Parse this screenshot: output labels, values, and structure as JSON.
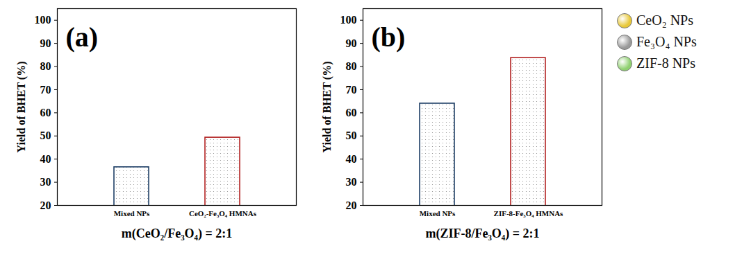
{
  "chart_data": [
    {
      "type": "bar",
      "label": "(a)",
      "categories": [
        "Mixed NPs",
        "CeO₂-Fe₃O₄ HMNAs"
      ],
      "values": [
        36.5,
        49.3
      ],
      "colors": [
        "#1f3f66",
        "#b22222"
      ],
      "xlabel": "m(CeO₂/Fe₃O₄) = 2:1",
      "ylabel": "Yield of BHET (%)",
      "ylim": [
        20,
        105
      ],
      "yticks": [
        20,
        30,
        40,
        50,
        60,
        70,
        80,
        90,
        100
      ]
    },
    {
      "type": "bar",
      "label": "(b)",
      "categories": [
        "Mixed NPs",
        "ZIF-8-Fe₃O₄ HMNAs"
      ],
      "values": [
        64.0,
        83.7
      ],
      "colors": [
        "#1f3f66",
        "#b22222"
      ],
      "xlabel": "m(ZIF-8/Fe₃O₄) = 2:1",
      "ylabel": "Yield of BHET (%)",
      "ylim": [
        20,
        105
      ],
      "yticks": [
        20,
        30,
        40,
        50,
        60,
        70,
        80,
        90,
        100
      ]
    }
  ],
  "legend_items": [
    {
      "name": "CeO₂ NPs",
      "color": "#e8c838"
    },
    {
      "name": "Fe₃O₄ NPs",
      "color": "#9a9a9a"
    },
    {
      "name": "ZIF-8 NPs",
      "color": "#8fd070"
    }
  ],
  "legend": "right"
}
